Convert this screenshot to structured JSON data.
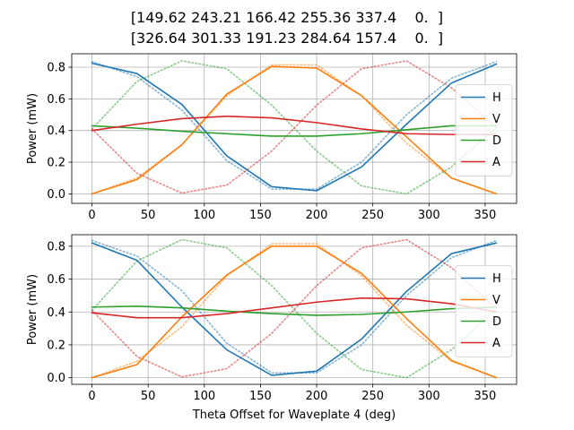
{
  "figure": {
    "title_lines": [
      "[149.62 243.21 166.42 255.36 337.4    0.  ]",
      "[326.64 301.33 191.23 284.64 157.4    0.  ]"
    ]
  },
  "chart_data": [
    {
      "type": "line",
      "xlabel": "",
      "ylabel": "Power (mW)",
      "xlim": [
        -18,
        378
      ],
      "ylim": [
        -0.06,
        0.885
      ],
      "xticks": [
        0,
        50,
        100,
        150,
        200,
        250,
        300,
        350
      ],
      "yticks": [
        0.0,
        0.2,
        0.4,
        0.6,
        0.8
      ],
      "ytick_labels": [
        "0.0",
        "0.2",
        "0.4",
        "0.6",
        "0.8"
      ],
      "grid": true,
      "legend_position": "center-right",
      "x": [
        0,
        40,
        80,
        120,
        160,
        200,
        240,
        280,
        320,
        360
      ],
      "series": [
        {
          "name": "H",
          "color": "#1f77b4",
          "style": "solid",
          "values": [
            0.825,
            0.76,
            0.565,
            0.24,
            0.045,
            0.02,
            0.17,
            0.44,
            0.7,
            0.82
          ]
        },
        {
          "name": "V",
          "color": "#ff7f0e",
          "style": "solid",
          "values": [
            0.0,
            0.09,
            0.31,
            0.63,
            0.805,
            0.795,
            0.62,
            0.36,
            0.1,
            0.0
          ]
        },
        {
          "name": "D",
          "color": "#2ca02c",
          "style": "solid",
          "values": [
            0.43,
            0.415,
            0.395,
            0.38,
            0.365,
            0.365,
            0.38,
            0.405,
            0.43,
            0.43
          ]
        },
        {
          "name": "A",
          "color": "#d62728",
          "style": "solid",
          "values": [
            0.4,
            0.44,
            0.475,
            0.49,
            0.48,
            0.45,
            0.41,
            0.38,
            0.375,
            0.375
          ]
        },
        {
          "name": "",
          "color": "#1f77b4",
          "style": "dotted",
          "values": [
            0.835,
            0.74,
            0.53,
            0.21,
            0.03,
            0.03,
            0.2,
            0.5,
            0.73,
            0.835
          ]
        },
        {
          "name": "",
          "color": "#ff7f0e",
          "style": "dotted",
          "values": [
            0.0,
            0.1,
            0.31,
            0.62,
            0.815,
            0.815,
            0.62,
            0.32,
            0.1,
            0.0
          ]
        },
        {
          "name": "",
          "color": "#2ca02c",
          "style": "dotted",
          "values": [
            0.41,
            0.71,
            0.84,
            0.79,
            0.56,
            0.27,
            0.05,
            0.0,
            0.17,
            0.42
          ]
        },
        {
          "name": "",
          "color": "#d62728",
          "style": "dotted",
          "values": [
            0.41,
            0.13,
            0.005,
            0.055,
            0.27,
            0.56,
            0.79,
            0.84,
            0.67,
            0.42
          ]
        }
      ]
    },
    {
      "type": "line",
      "xlabel": "Theta Offset for Waveplate 4 (deg)",
      "ylabel": "Power (mW)",
      "xlim": [
        -18,
        378
      ],
      "ylim": [
        -0.04,
        0.87
      ],
      "xticks": [
        0,
        50,
        100,
        150,
        200,
        250,
        300,
        350
      ],
      "yticks": [
        0.0,
        0.2,
        0.4,
        0.6,
        0.8
      ],
      "ytick_labels": [
        "0.0",
        "0.2",
        "0.4",
        "0.6",
        "0.8"
      ],
      "grid": true,
      "legend_position": "center-right",
      "x": [
        0,
        40,
        80,
        120,
        160,
        200,
        240,
        280,
        320,
        360
      ],
      "series": [
        {
          "name": "H",
          "color": "#1f77b4",
          "style": "solid",
          "values": [
            0.82,
            0.715,
            0.43,
            0.17,
            0.015,
            0.04,
            0.235,
            0.525,
            0.755,
            0.82
          ]
        },
        {
          "name": "V",
          "color": "#ff7f0e",
          "style": "solid",
          "values": [
            0.0,
            0.08,
            0.37,
            0.625,
            0.8,
            0.8,
            0.635,
            0.36,
            0.105,
            0.0
          ]
        },
        {
          "name": "D",
          "color": "#2ca02c",
          "style": "solid",
          "values": [
            0.43,
            0.435,
            0.425,
            0.405,
            0.39,
            0.38,
            0.385,
            0.4,
            0.42,
            0.43
          ]
        },
        {
          "name": "A",
          "color": "#d62728",
          "style": "solid",
          "values": [
            0.395,
            0.365,
            0.365,
            0.39,
            0.425,
            0.46,
            0.485,
            0.48,
            0.45,
            0.4
          ]
        },
        {
          "name": "",
          "color": "#1f77b4",
          "style": "dotted",
          "values": [
            0.835,
            0.74,
            0.53,
            0.21,
            0.03,
            0.03,
            0.2,
            0.5,
            0.73,
            0.835
          ]
        },
        {
          "name": "",
          "color": "#ff7f0e",
          "style": "dotted",
          "values": [
            0.0,
            0.1,
            0.31,
            0.62,
            0.815,
            0.815,
            0.62,
            0.32,
            0.1,
            0.0
          ]
        },
        {
          "name": "",
          "color": "#2ca02c",
          "style": "dotted",
          "values": [
            0.41,
            0.71,
            0.84,
            0.79,
            0.56,
            0.27,
            0.05,
            0.0,
            0.17,
            0.42
          ]
        },
        {
          "name": "",
          "color": "#d62728",
          "style": "dotted",
          "values": [
            0.41,
            0.13,
            0.005,
            0.055,
            0.27,
            0.56,
            0.79,
            0.84,
            0.67,
            0.42
          ]
        }
      ]
    }
  ]
}
